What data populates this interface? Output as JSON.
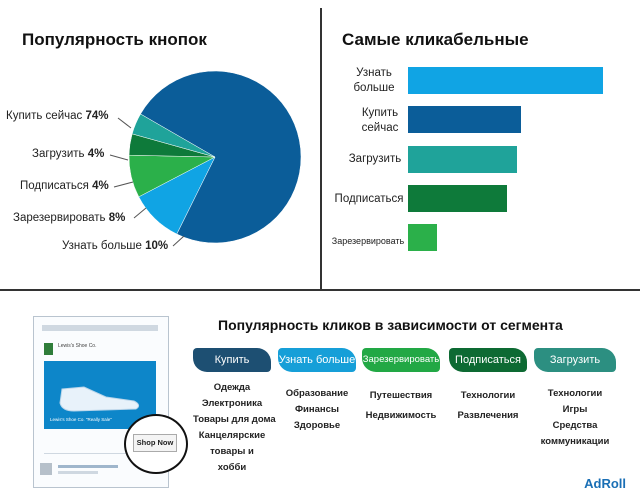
{
  "chart_data": [
    {
      "type": "pie",
      "title": "Популярность кнопок",
      "slices": [
        {
          "label": "Купить сейчас",
          "value": 74,
          "value_label": "74%",
          "color": "#0b5d99"
        },
        {
          "label": "Загрузить",
          "value": 4,
          "value_label": "4%",
          "color": "#1fa39a"
        },
        {
          "label": "Подписаться",
          "value": 4,
          "value_label": "4%",
          "color": "#0e7a3a"
        },
        {
          "label": "Зарезервировать",
          "value": 8,
          "value_label": "8%",
          "color": "#2bb04a"
        },
        {
          "label": "Узнать больше",
          "value": 10,
          "value_label": "10%",
          "color": "#10a4e4"
        }
      ]
    },
    {
      "type": "bar",
      "orientation": "horizontal",
      "title": "Самые кликабельные",
      "categories": [
        "Узнать больше",
        "Купить сейчас",
        "Загрузить",
        "Подписаться",
        "Зарезервировать"
      ],
      "values": [
        100,
        58,
        56,
        51,
        15
      ],
      "colors": [
        "#10a4e4",
        "#0b5d99",
        "#1fa39a",
        "#0e7a3a",
        "#2bb04a"
      ],
      "xlim": [
        0,
        100
      ]
    }
  ],
  "segments": {
    "title": "Популярность кликов в зависимости от сегмента",
    "columns": [
      {
        "button": "Купить",
        "color": "#1d4f72",
        "items": [
          "Одежда",
          "Электроника",
          "Товары для дома",
          "Канцелярские",
          "товары и",
          "хобби"
        ]
      },
      {
        "button": "Узнать больше",
        "color": "#169fd8",
        "items": [
          "Образование",
          "Финансы",
          "Здоровье"
        ]
      },
      {
        "button": "Зарезервировать",
        "color": "#22a845",
        "items": [
          "Путешествия",
          "Недвижимость"
        ]
      },
      {
        "button": "Подписаться",
        "color": "#0d6a33",
        "items": [
          "Технологии",
          "Развлечения"
        ]
      },
      {
        "button": "Загрузить",
        "color": "#2c8f81",
        "items": [
          "Технологии",
          "Игры",
          "Средства",
          "коммуникации"
        ]
      }
    ]
  },
  "ad_mock": {
    "brand_top": "Lewis's Shoe Co.",
    "promo": "Lewis's Shoe Co. \"Really Sale\"",
    "cta": "Shop Now"
  },
  "brand": "AdRoll"
}
